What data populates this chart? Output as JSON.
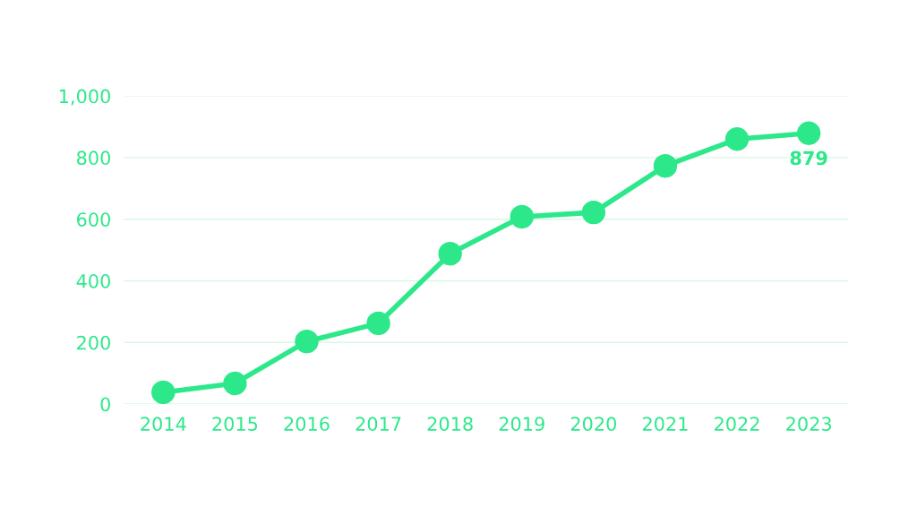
{
  "chart_data": {
    "type": "line",
    "categories": [
      "2014",
      "2015",
      "2016",
      "2017",
      "2018",
      "2019",
      "2020",
      "2021",
      "2022",
      "2023"
    ],
    "series": [
      {
        "color": "#2de88a",
        "values": [
          38,
          67,
          203,
          262,
          488,
          608,
          622,
          773,
          860,
          879
        ],
        "value_labels": [
          null,
          null,
          null,
          null,
          null,
          null,
          null,
          null,
          null,
          "879"
        ]
      }
    ],
    "ylim": [
      0,
      1000
    ],
    "yticks": [
      0,
      {
        "value": 200,
        "label": "200"
      },
      {
        "value": 400,
        "label": "400"
      },
      {
        "value": 600,
        "label": "600"
      },
      {
        "value": 800,
        "label": "800"
      },
      {
        "value": 1000,
        "label": "1,000"
      }
    ],
    "grid": "y",
    "marker": "circle",
    "line_style": "solid",
    "legend": false
  }
}
